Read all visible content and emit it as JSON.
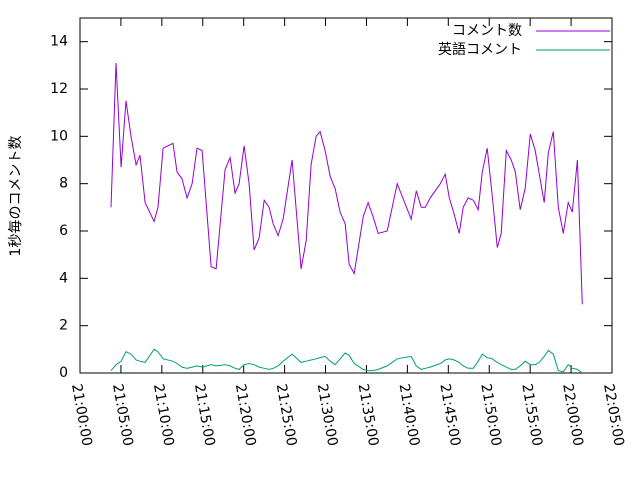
{
  "chart_data": {
    "type": "line",
    "ylabel": "1秒毎のコメント数",
    "x": [
      "21:03:47",
      "21:04:24",
      "21:05:01",
      "21:05:37",
      "21:06:14",
      "21:06:51",
      "21:07:20",
      "21:07:57",
      "21:09:03",
      "21:09:32",
      "21:10:09",
      "21:11:22",
      "21:11:51",
      "21:12:28",
      "21:13:05",
      "21:13:42",
      "21:14:18",
      "21:14:55",
      "21:16:01",
      "21:16:38",
      "21:17:44",
      "21:18:20",
      "21:18:57",
      "21:19:26",
      "21:20:03",
      "21:20:40",
      "21:21:16",
      "21:21:53",
      "21:22:30",
      "21:23:06",
      "21:23:36",
      "21:24:12",
      "21:24:49",
      "21:25:55",
      "21:27:01",
      "21:27:38",
      "21:28:14",
      "21:28:51",
      "21:29:20",
      "21:29:57",
      "21:30:34",
      "21:31:10",
      "21:31:47",
      "21:32:24",
      "21:32:53",
      "21:33:30",
      "21:34:36",
      "21:35:12",
      "21:35:49",
      "21:36:26",
      "21:37:32",
      "21:38:45",
      "21:40:28",
      "21:41:05",
      "21:41:41",
      "21:42:11",
      "21:42:47",
      "21:44:01",
      "21:44:37",
      "21:45:07",
      "21:45:43",
      "21:46:20",
      "21:46:49",
      "21:47:26",
      "21:48:03",
      "21:48:39",
      "21:49:09",
      "21:49:45",
      "21:50:22",
      "21:50:59",
      "21:51:28",
      "21:52:05",
      "21:52:41",
      "21:53:11",
      "21:53:47",
      "21:54:24",
      "21:55:01",
      "21:55:37",
      "21:56:07",
      "21:56:43",
      "21:57:13",
      "21:57:50",
      "21:58:26",
      "21:59:03",
      "21:59:39",
      "22:00:09",
      "22:00:46",
      "22:01:22"
    ],
    "series": [
      {
        "name": "コメント数",
        "color": "#9400d3",
        "values": [
          7.0,
          13.1,
          8.7,
          11.5,
          10,
          8.8,
          9.2,
          7.2,
          6.4,
          7,
          9.5,
          9.7,
          8.5,
          8.2,
          7.4,
          8,
          9.5,
          9.4,
          4.5,
          4.4,
          8.6,
          9.1,
          7.6,
          8,
          9.6,
          8,
          5.2,
          5.7,
          7.3,
          7,
          6.3,
          5.8,
          6.5,
          9,
          4.4,
          5.6,
          8.8,
          10,
          10.2,
          9.4,
          8.3,
          7.8,
          6.8,
          6.3,
          4.6,
          4.2,
          6.6,
          7.2,
          6.6,
          5.9,
          6,
          8,
          6.5,
          7.7,
          7,
          7,
          7.4,
          8,
          8.4,
          7.4,
          6.7,
          5.9,
          7,
          7.4,
          7.3,
          6.9,
          8.5,
          9.5,
          7.5,
          5.3,
          5.9,
          9.4,
          9,
          8.5,
          6.9,
          7.8,
          10.1,
          9.4,
          8.4,
          7.2,
          9.3,
          10.2,
          7,
          5.9,
          7.2,
          6.8,
          9,
          2.9
        ]
      },
      {
        "name": "英語コメント",
        "color": "#009e73",
        "values": [
          0.1,
          0.35,
          0.5,
          0.9,
          0.8,
          0.55,
          0.5,
          0.45,
          1.0,
          0.9,
          0.6,
          0.5,
          0.4,
          0.25,
          0.2,
          0.25,
          0.3,
          0.25,
          0.35,
          0.3,
          0.35,
          0.3,
          0.2,
          0.15,
          0.35,
          0.4,
          0.35,
          0.25,
          0.2,
          0.15,
          0.2,
          0.3,
          0.5,
          0.8,
          0.45,
          0.5,
          0.55,
          0.6,
          0.65,
          0.7,
          0.5,
          0.35,
          0.6,
          0.85,
          0.75,
          0.4,
          0.15,
          0.1,
          0.1,
          0.15,
          0.3,
          0.6,
          0.7,
          0.3,
          0.15,
          0.2,
          0.25,
          0.4,
          0.55,
          0.6,
          0.55,
          0.45,
          0.3,
          0.2,
          0.2,
          0.5,
          0.8,
          0.65,
          0.6,
          0.45,
          0.35,
          0.25,
          0.15,
          0.15,
          0.3,
          0.5,
          0.35,
          0.35,
          0.45,
          0.7,
          0.95,
          0.8,
          0.1,
          0.05,
          0.35,
          0.2,
          0.15,
          0.0
        ]
      }
    ],
    "xlim": [
      "21:00:00",
      "22:05:00"
    ],
    "xticks": [
      "21:00:00",
      "21:05:00",
      "21:10:00",
      "21:15:00",
      "21:20:00",
      "21:25:00",
      "21:30:00",
      "21:35:00",
      "21:40:00",
      "21:45:00",
      "21:50:00",
      "21:55:00",
      "22:00:00",
      "22:05:00"
    ],
    "ylim": [
      0,
      15
    ],
    "yticks": [
      0,
      2,
      4,
      6,
      8,
      10,
      12,
      14
    ],
    "legend": "top-right"
  }
}
